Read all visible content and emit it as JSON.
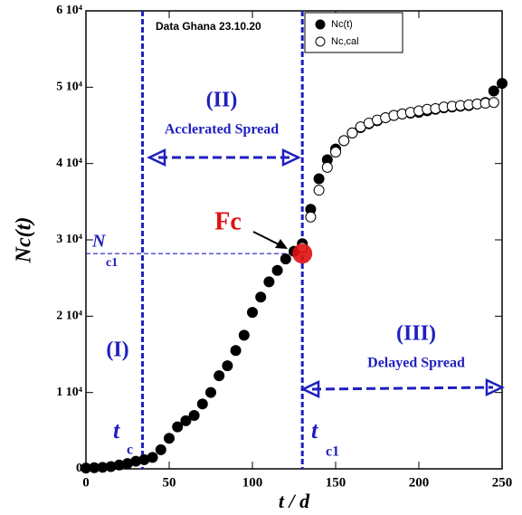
{
  "chart_data": {
    "type": "scatter",
    "ylabel": "Nc(t)",
    "xlabel": "t / d",
    "xlim": [
      0,
      250
    ],
    "ylim": [
      0,
      60000
    ],
    "xticks": [
      0,
      50,
      100,
      150,
      200,
      250
    ],
    "yticks": [
      {
        "value": 0,
        "label": "0"
      },
      {
        "value": 10000,
        "label": "1 10⁴"
      },
      {
        "value": 20000,
        "label": "2 10⁴"
      },
      {
        "value": 30000,
        "label": "3 10⁴"
      },
      {
        "value": 40000,
        "label": "4 10⁴"
      },
      {
        "value": 50000,
        "label": "5 10⁴"
      },
      {
        "value": 60000,
        "label": "6 10⁴"
      }
    ],
    "legend": "upper right",
    "series": [
      {
        "name": "Nc(t)",
        "color": "#000000",
        "marker": "filled",
        "x": [
          0,
          5,
          10,
          15,
          20,
          25,
          30,
          35,
          40,
          45,
          50,
          55,
          60,
          65,
          70,
          75,
          80,
          85,
          90,
          95,
          100,
          105,
          110,
          115,
          120,
          125,
          130,
          135,
          140,
          145,
          150,
          155,
          160,
          165,
          170,
          175,
          180,
          185,
          190,
          195,
          200,
          205,
          210,
          215,
          220,
          225,
          230,
          235,
          240,
          245,
          250
        ],
        "values": [
          100,
          150,
          200,
          300,
          500,
          700,
          1000,
          1200,
          1500,
          2500,
          4000,
          5500,
          6300,
          7000,
          8500,
          10000,
          12200,
          13500,
          15500,
          17500,
          20500,
          22500,
          24500,
          26000,
          27500,
          28500,
          29500,
          34000,
          38000,
          40500,
          41900,
          43000,
          44000,
          44700,
          45200,
          45600,
          46000,
          46300,
          46500,
          46600,
          46700,
          46900,
          47100,
          47300,
          47400,
          47500,
          47600,
          47800,
          48000,
          49500,
          50500
        ]
      },
      {
        "name": "Nc,cal",
        "color": "#000000",
        "marker": "open",
        "x": [
          130,
          135,
          140,
          145,
          150,
          155,
          160,
          165,
          170,
          175,
          180,
          185,
          190,
          195,
          200,
          205,
          210,
          215,
          220,
          225,
          230,
          235,
          240,
          245
        ],
        "values": [
          29000,
          33000,
          36500,
          39500,
          41500,
          43000,
          44000,
          44800,
          45300,
          45700,
          46000,
          46300,
          46500,
          46700,
          46900,
          47100,
          47200,
          47400,
          47500,
          47600,
          47700,
          47800,
          47900,
          48000
        ]
      }
    ],
    "vlines": [
      34,
      130
    ],
    "hline": 28200,
    "fc_point": [
      130,
      28200
    ],
    "annotations": {
      "data_note": "Data Ghana 23.10.20",
      "phase1": "(I)",
      "phase2": "(II)",
      "phase2_name": "Acclerated Spread",
      "phase3": "(III)",
      "phase3_name": "Delayed Spread",
      "fc": "Fc",
      "n_main": "N",
      "n_sub": "c1",
      "tc_main": "t",
      "tc_sub": "c",
      "tc1_main": "t",
      "tc1_sub": "c1"
    }
  }
}
